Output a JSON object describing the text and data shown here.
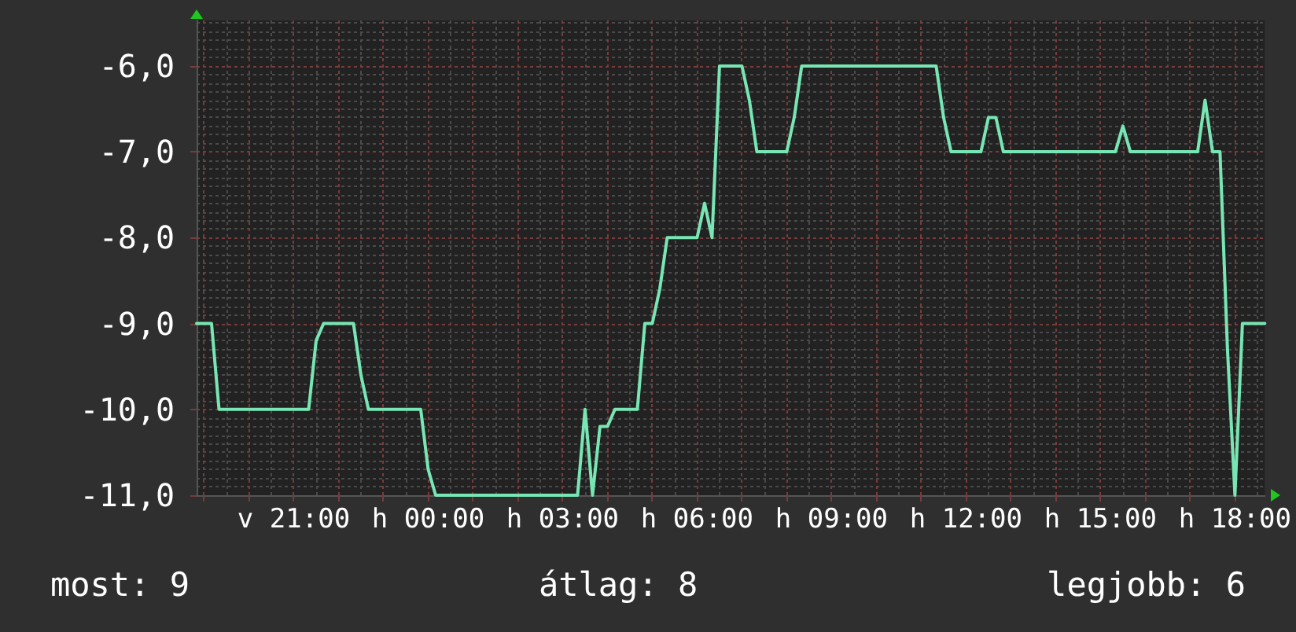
{
  "chart_data": {
    "type": "line",
    "categories": [
      null,
      null,
      null,
      null,
      null,
      null,
      null,
      null,
      null,
      null,
      null,
      null,
      null,
      "v 21:00",
      null,
      null,
      null,
      null,
      null,
      null,
      null,
      null,
      null,
      null,
      null,
      null,
      null,
      null,
      null,
      null,
      null,
      "h 00:00",
      null,
      null,
      null,
      null,
      null,
      null,
      null,
      null,
      null,
      null,
      null,
      null,
      null,
      null,
      null,
      null,
      null,
      "h 03:00",
      null,
      null,
      null,
      null,
      null,
      null,
      null,
      null,
      null,
      null,
      null,
      null,
      null,
      null,
      null,
      null,
      null,
      "h 06:00",
      null,
      null,
      null,
      null,
      null,
      null,
      null,
      null,
      null,
      null,
      null,
      null,
      null,
      null,
      null,
      null,
      null,
      "h 09:00",
      null,
      null,
      null,
      null,
      null,
      null,
      null,
      null,
      null,
      null,
      null,
      null,
      null,
      null,
      null,
      null,
      null,
      "h 12:00",
      null,
      null,
      null,
      null,
      null,
      null,
      null,
      null,
      null,
      null,
      null,
      null,
      null,
      null,
      null,
      null,
      null,
      "h 15:00",
      null,
      null,
      null,
      null,
      null,
      null,
      null,
      null,
      null,
      null,
      null,
      null,
      null,
      null,
      null,
      null,
      null,
      "h 18:00",
      null,
      null,
      null,
      null
    ],
    "series": [
      {
        "color": "#78e6b4",
        "values": [
          -9,
          -9,
          -9,
          -10,
          -10,
          -10,
          -10,
          -10,
          -10,
          -10,
          -10,
          -10,
          -10,
          -10,
          -10,
          -10,
          -9.2,
          -9,
          -9,
          -9,
          -9,
          -9,
          -9.6,
          -10,
          -10,
          -10,
          -10,
          -10,
          -10,
          -10,
          -10,
          -10.7,
          -11,
          -11,
          -11,
          -11,
          -11,
          -11,
          -11,
          -11,
          -11,
          -11,
          -11,
          -11,
          -11,
          -11,
          -11,
          -11,
          -11,
          -11,
          -11,
          -11,
          -10,
          -11,
          -10.2,
          -10.2,
          -10,
          -10,
          -10,
          -10,
          -9,
          -9,
          -8.6,
          -8,
          -8,
          -8,
          -8,
          -8,
          -7.6,
          -8,
          -6,
          -6,
          -6,
          -6,
          -6.4,
          -7,
          -7,
          -7,
          -7,
          -7,
          -6.6,
          -6,
          -6,
          -6,
          -6,
          -6,
          -6,
          -6,
          -6,
          -6,
          -6,
          -6,
          -6,
          -6,
          -6,
          -6,
          -6,
          -6,
          -6,
          -6,
          -6.6,
          -7,
          -7,
          -7,
          -7,
          -7,
          -6.6,
          -6.6,
          -7,
          -7,
          -7,
          -7,
          -7,
          -7,
          -7,
          -7,
          -7,
          -7,
          -7,
          -7,
          -7,
          -7,
          -7,
          -7,
          -6.7,
          -7,
          -7,
          -7,
          -7,
          -7,
          -7,
          -7,
          -7,
          -7,
          -7,
          -6.4,
          -7,
          -7,
          -9.3,
          -11,
          -9,
          -9,
          -9,
          -9
        ]
      }
    ],
    "ylim": [
      -11,
      -5.47
    ],
    "yticks": [
      {
        "value": -11,
        "label": "-11,0"
      },
      {
        "value": -10,
        "label": "-10,0"
      },
      {
        "value": -9,
        "label": "-9,0"
      },
      {
        "value": -8,
        "label": "-8,0"
      },
      {
        "value": -7,
        "label": "-7,0"
      },
      {
        "value": -6,
        "label": "-6,0"
      }
    ],
    "grid": true,
    "marker": "none",
    "annotations": [
      "most: 9",
      "átlag: 8",
      "legjobb: 6"
    ]
  }
}
